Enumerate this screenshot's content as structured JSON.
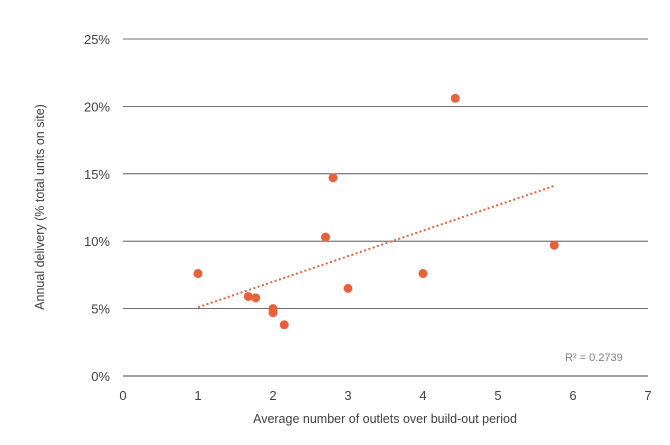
{
  "chart_data": {
    "type": "scatter",
    "title": "",
    "xlabel": "Average number of outlets over build-out period",
    "ylabel": "Annual delivery (% total units on site)",
    "xlim": [
      0,
      7
    ],
    "ylim": [
      0,
      25
    ],
    "x_ticks": [
      "0",
      "1",
      "2",
      "3",
      "4",
      "5",
      "6",
      "7"
    ],
    "y_ticks": [
      "0%",
      "5%",
      "10%",
      "15%",
      "20%",
      "25%"
    ],
    "grid": "horizontal",
    "points": [
      {
        "x": 1.0,
        "y": 7.6
      },
      {
        "x": 1.67,
        "y": 5.9
      },
      {
        "x": 1.77,
        "y": 5.8
      },
      {
        "x": 2.0,
        "y": 5.0
      },
      {
        "x": 2.0,
        "y": 4.7
      },
      {
        "x": 2.15,
        "y": 3.8
      },
      {
        "x": 2.7,
        "y": 10.3
      },
      {
        "x": 2.8,
        "y": 14.7
      },
      {
        "x": 3.0,
        "y": 6.5
      },
      {
        "x": 4.0,
        "y": 7.6
      },
      {
        "x": 4.43,
        "y": 20.6
      },
      {
        "x": 5.75,
        "y": 9.7
      }
    ],
    "trendline": {
      "type": "linear",
      "x": [
        1.0,
        5.75
      ],
      "y": [
        5.1,
        14.1
      ]
    },
    "annotation": "R² = 0.2739",
    "colors": {
      "points": "#E8613A",
      "trendline": "#E8613A",
      "grid": "#404040",
      "text": "#404040"
    }
  }
}
